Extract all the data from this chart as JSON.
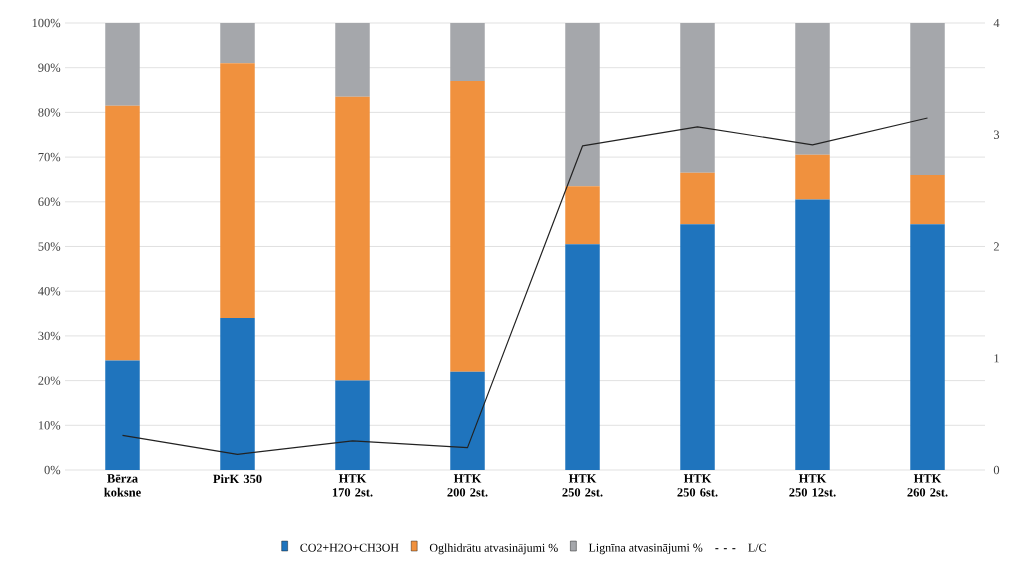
{
  "chart_data": {
    "type": "bar",
    "stacked": true,
    "categories": [
      "Bērza koksne",
      "PirK 350",
      "HTK 170 2st.",
      "HTK 200 2st.",
      "HTK 250 2st.",
      "HTK 250 6st.",
      "HTK 250 12st.",
      "HTK 260 2st."
    ],
    "series": [
      {
        "name": "CO2+H2O+CH3OH",
        "color": "#1f74bd",
        "values": [
          24.5,
          34,
          20,
          22,
          50.5,
          55,
          60.5,
          55
        ]
      },
      {
        "name": "Oglhidrātu atvasinājumi %",
        "color": "#f0913e",
        "values": [
          57,
          57,
          63.5,
          65,
          13,
          11.5,
          10,
          11
        ]
      },
      {
        "name": "Lignīna atvasinājumi %",
        "color": "#a5a7ab",
        "values": [
          18.5,
          9,
          16.5,
          13,
          36.5,
          33.5,
          29.5,
          34
        ]
      },
      {
        "name": "L/C",
        "type": "line",
        "axis": "y2",
        "color": "#222222",
        "values": [
          0.31,
          0.14,
          0.26,
          0.2,
          2.9,
          3.07,
          2.91,
          3.15
        ]
      }
    ],
    "ylim": [
      0,
      100
    ],
    "yticks": [
      {
        "value": 0,
        "label": "0%"
      },
      {
        "value": 10,
        "label": "10%"
      },
      {
        "value": 20,
        "label": "20%"
      },
      {
        "value": 30,
        "label": "30%"
      },
      {
        "value": 40,
        "label": "40%"
      },
      {
        "value": 50,
        "label": "50%"
      },
      {
        "value": 60,
        "label": "60%"
      },
      {
        "value": 70,
        "label": "70%"
      },
      {
        "value": 80,
        "label": "80%"
      },
      {
        "value": 90,
        "label": "90%"
      },
      {
        "value": 100,
        "label": "100%"
      }
    ],
    "y2lim": [
      0,
      4
    ],
    "y2ticks": [
      0,
      1,
      2,
      3,
      4
    ],
    "grid": "y",
    "legend": "bottom",
    "marker": "none",
    "line_style": "solid"
  }
}
